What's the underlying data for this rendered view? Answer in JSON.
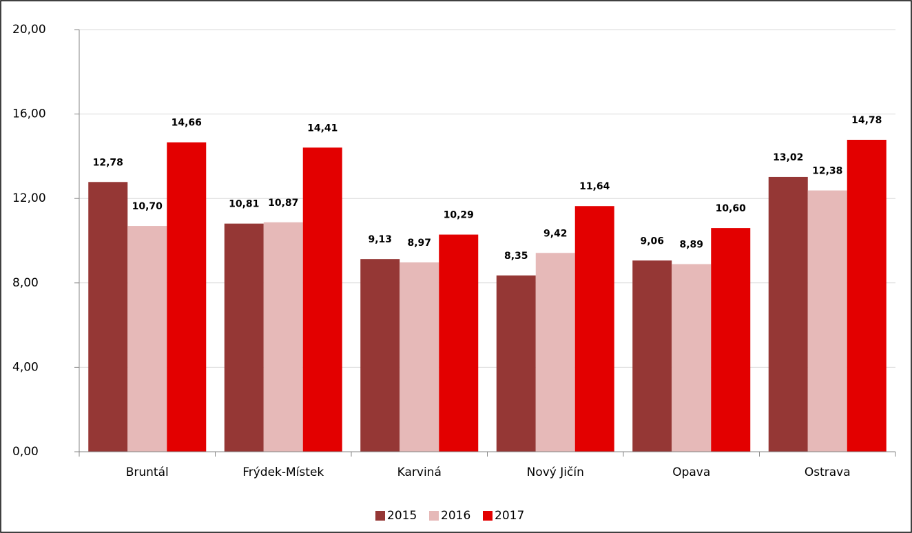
{
  "chart_data": {
    "type": "bar",
    "categories": [
      "Bruntál",
      "Frýdek-Místek",
      "Karviná",
      "Nový Jičín",
      "Opava",
      "Ostrava"
    ],
    "series": [
      {
        "name": "2015",
        "color": "#953735",
        "values": [
          12.78,
          10.81,
          9.13,
          8.35,
          9.06,
          13.02
        ],
        "value_labels": [
          "12,78",
          "10,81",
          "9,13",
          "8,35",
          "9,06",
          "13,02"
        ]
      },
      {
        "name": "2016",
        "color": "#e6b9b8",
        "values": [
          10.7,
          10.87,
          8.97,
          9.42,
          8.89,
          12.38
        ],
        "value_labels": [
          "10,70",
          "10,87",
          "8,97",
          "9,42",
          "8,89",
          "12,38"
        ]
      },
      {
        "name": "2017",
        "color": "#e30000",
        "values": [
          14.66,
          14.41,
          10.29,
          11.64,
          10.6,
          14.78
        ],
        "value_labels": [
          "14,66",
          "14,41",
          "10,29",
          "11,64",
          "10,60",
          "14,78"
        ]
      }
    ],
    "ylim": [
      0,
      20
    ],
    "yticks": [
      {
        "value": 0,
        "label": "0,00"
      },
      {
        "value": 4,
        "label": "4,00"
      },
      {
        "value": 8,
        "label": "8,00"
      },
      {
        "value": 12,
        "label": "12,00"
      },
      {
        "value": 16,
        "label": "16,00"
      },
      {
        "value": 20,
        "label": "20,00"
      }
    ],
    "grid": true,
    "legend": "bottom"
  }
}
